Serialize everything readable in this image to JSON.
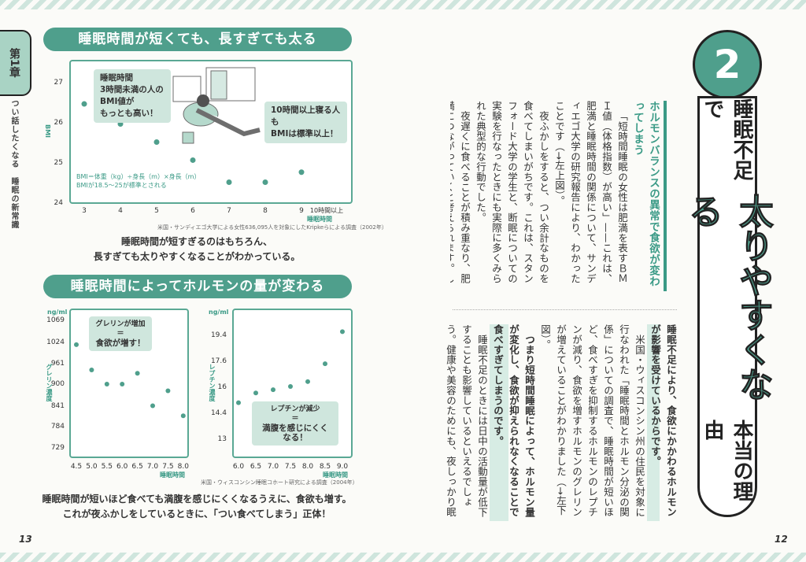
{
  "colors": {
    "accent": "#4f9f8c",
    "callout": "#cfe6dd",
    "text_teal": "#3a9a86"
  },
  "sidebar": {
    "chapter": "第1章",
    "series": "つい話したくなる　睡眠の新常識"
  },
  "chart1": {
    "title": "睡眠時間が短くても、長すぎても太る",
    "callout_left": [
      "睡眠時間",
      "3時間未満の人の",
      "BMI値が",
      "もっとも高い！"
    ],
    "callout_right": [
      "10時間以上寝る人も",
      "BMIは標準以上！"
    ],
    "note": [
      "BMI＝体重（kg）÷身長（m）×身長（m）",
      "BMIが18.5～25が標準とされる"
    ],
    "source": "米国・サンディエゴ大学による女性636,095人を対象にしたKripkeらによる調査（2002年）",
    "caption": [
      "睡眠時間が短すぎるのはもちろん、",
      "長すぎても太りやすくなることがわかっている。"
    ]
  },
  "chart2": {
    "title": "睡眠時間によってホルモンの量が変わる",
    "callout_left": [
      "グレリンが増加",
      "＝",
      "食欲が増す！"
    ],
    "callout_right": [
      "レプチンが減少",
      "＝",
      "満腹を感じにくくなる！"
    ],
    "source": "米国・ウィスコンシン睡眠コホート研究による調査（2004年）",
    "caption": [
      "睡眠時間が短いほど食べても満腹を感じにくくなるうえに、食欲も増す。",
      "これが夜ふかしをしているときに、「つい食べてしまう」正体！"
    ]
  },
  "chart_data": [
    {
      "type": "scatter",
      "ylabel": "BMI",
      "xlabel": "睡眠時間",
      "categories": [
        "3",
        "4",
        "5",
        "6",
        "7",
        "8",
        "9",
        "10時間以上"
      ],
      "values": [
        26.45,
        25.95,
        25.5,
        25.05,
        24.5,
        24.5,
        24.75,
        25.6
      ],
      "yticks": [
        24,
        25,
        26,
        27
      ],
      "ylim": [
        24,
        27.5
      ],
      "grid": false
    },
    {
      "type": "scatter",
      "ylabel": "グレリン濃度",
      "yunit": "ng/ml",
      "xlabel": "睡眠時間",
      "xticks": [
        "4.5",
        "5.0",
        "5.5",
        "6.0",
        "6.5",
        "7.0",
        "7.5",
        "8.0"
      ],
      "x": [
        4.5,
        5.0,
        5.5,
        6.0,
        6.5,
        7.0,
        7.5,
        8.0
      ],
      "y": [
        1015,
        940,
        898,
        898,
        930,
        840,
        880,
        812
      ],
      "yticks": [
        729,
        784,
        841,
        900,
        961,
        1024,
        1069
      ],
      "grid": false
    },
    {
      "type": "scatter",
      "ylabel": "レプチン濃度",
      "yunit": "ng/ml",
      "xlabel": "睡眠時間",
      "xticks": [
        "6.0",
        "6.5",
        "7.0",
        "7.5",
        "8.0",
        "8.5",
        "9.0"
      ],
      "x": [
        6.0,
        6.5,
        7.0,
        7.5,
        8.0,
        8.5,
        9.0
      ],
      "y": [
        15.0,
        15.6,
        15.8,
        16.0,
        16.3,
        17.4,
        19.6
      ],
      "yticks": [
        13.0,
        14.4,
        16.0,
        17.6,
        19.4
      ],
      "grid": false
    }
  ],
  "article": {
    "number": "2",
    "title_pre": "睡眠不足で",
    "title_big": "太りやすくなる",
    "title_post": "本当の理由",
    "heading": "ホルモンバランスの異常で食欲が変わってしまう",
    "p1": "「短時間睡眠の女性は肥満を表すＢＭＩ値（体格指数）が高い」——これは、肥満と睡眠時間の関係について、サンディエゴ大学の研究報告により、わかったことです（→左上図）。",
    "p2": "夜ふかしをすると、つい余計なものを食べてしまいがちです。これは、スタンフォード大学の学生と、断眠についての実験を行なったときにも実際に多くみられた典型的な行動でした。",
    "p3": "夜遅くに食べることが積み重なり、肥満につながっていくと考えられます。しかし、なぜ寝ないと食べてしまうのか——起きている時間が長いから食べる量が増えるのではなく、",
    "p3_bold": "睡眠不足により、食欲にかかわるホルモンが影響を受けているからです。",
    "p4": "米国・ウィスコンシン州の住民を対象に行なわれた「睡眠時間とホルモン分泌の関係」についての調査で、睡眠時間が短いほど、食べすぎを抑制するホルモンのレプチンが減り、食欲を増すホルモンのグレリンが増えていることがわかりました（→左下図）。",
    "p5_bold": "つまり短時間睡眠によって、ホルモン量が変化し、食欲が抑えられなくなることで食べすぎてしまうのです。",
    "p6": "睡眠不足のときには日中の活動量が低下することも影響しているといえるでしょう。健康や美容のためにも、夜しっかり眠ることが大切です。"
  },
  "pages": {
    "left": "13",
    "right": "12"
  }
}
